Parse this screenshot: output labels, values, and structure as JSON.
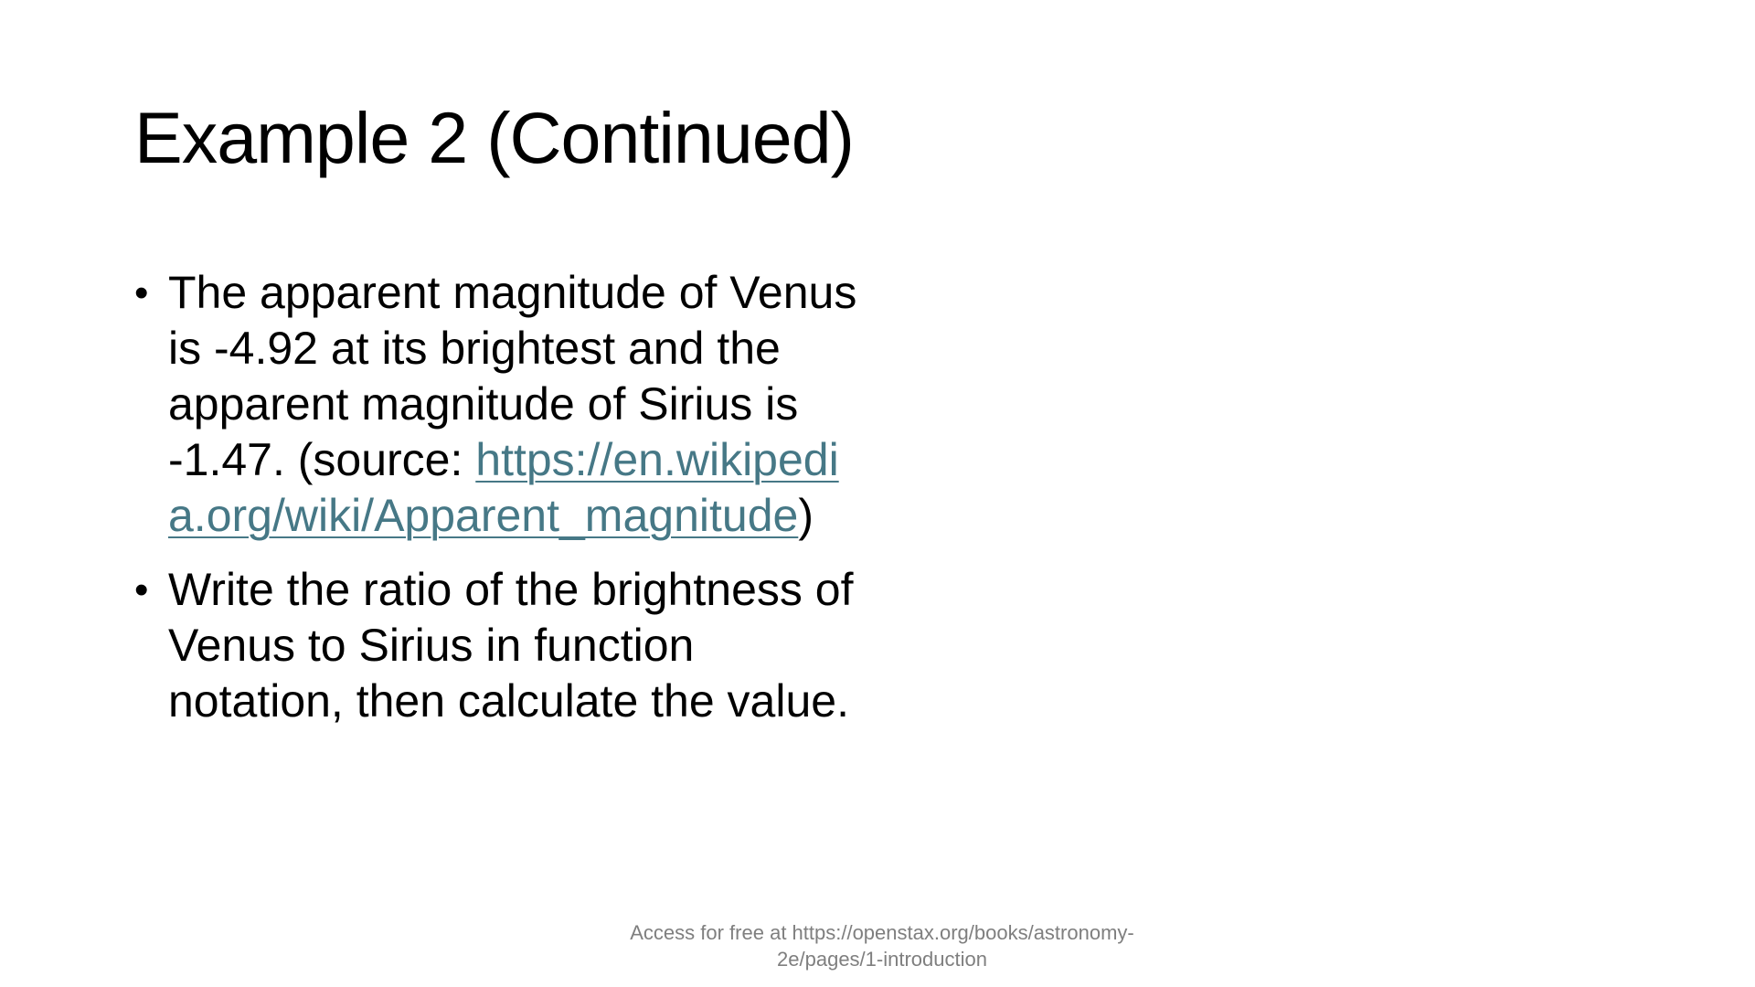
{
  "slide": {
    "title": "Example 2 (Continued)",
    "bullets": [
      {
        "marker": "•",
        "text_before": "The apparent magnitude of Venus is -4.92 at its brightest and the apparent magnitude of Sirius is -1.47. (source: ",
        "link_text": "https://en.wikipedia.org/wiki/Apparent_magnitude",
        "text_after": ")"
      },
      {
        "marker": "•",
        "text": "Write the ratio of the brightness of Venus to Sirius in function notation, then calculate the value."
      }
    ],
    "footer": "Access for free at https://openstax.org/books/astronomy-2e/pages/1-introduction"
  },
  "colors": {
    "background": "#ffffff",
    "text": "#000000",
    "link": "#467886",
    "footer": "#7f7f7f"
  }
}
